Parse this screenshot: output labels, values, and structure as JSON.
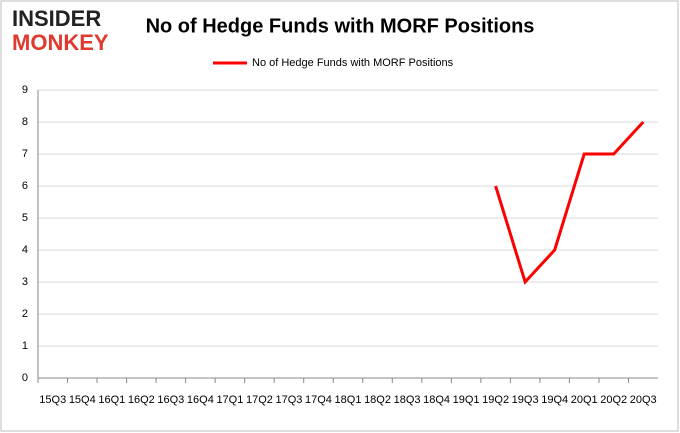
{
  "brand": {
    "line1": "INSIDER",
    "line2": "MONKEY"
  },
  "chart_data": {
    "type": "line",
    "title": "No of Hedge Funds with MORF Positions",
    "categories": [
      "15Q3",
      "15Q4",
      "16Q1",
      "16Q2",
      "16Q3",
      "16Q4",
      "17Q1",
      "17Q2",
      "17Q3",
      "17Q4",
      "18Q1",
      "18Q2",
      "18Q3",
      "18Q4",
      "19Q1",
      "19Q2",
      "19Q3",
      "19Q4",
      "20Q1",
      "20Q2",
      "20Q3"
    ],
    "series": [
      {
        "name": "No of Hedge Funds with MORF Positions",
        "color": "#ff0000",
        "values": [
          null,
          null,
          null,
          null,
          null,
          null,
          null,
          null,
          null,
          null,
          null,
          null,
          null,
          null,
          null,
          6,
          3,
          4,
          7,
          7,
          8
        ]
      }
    ],
    "ylim": [
      0,
      9
    ],
    "yticks": [
      0,
      1,
      2,
      3,
      4,
      5,
      6,
      7,
      8,
      9
    ],
    "grid": true,
    "legend": "top"
  }
}
